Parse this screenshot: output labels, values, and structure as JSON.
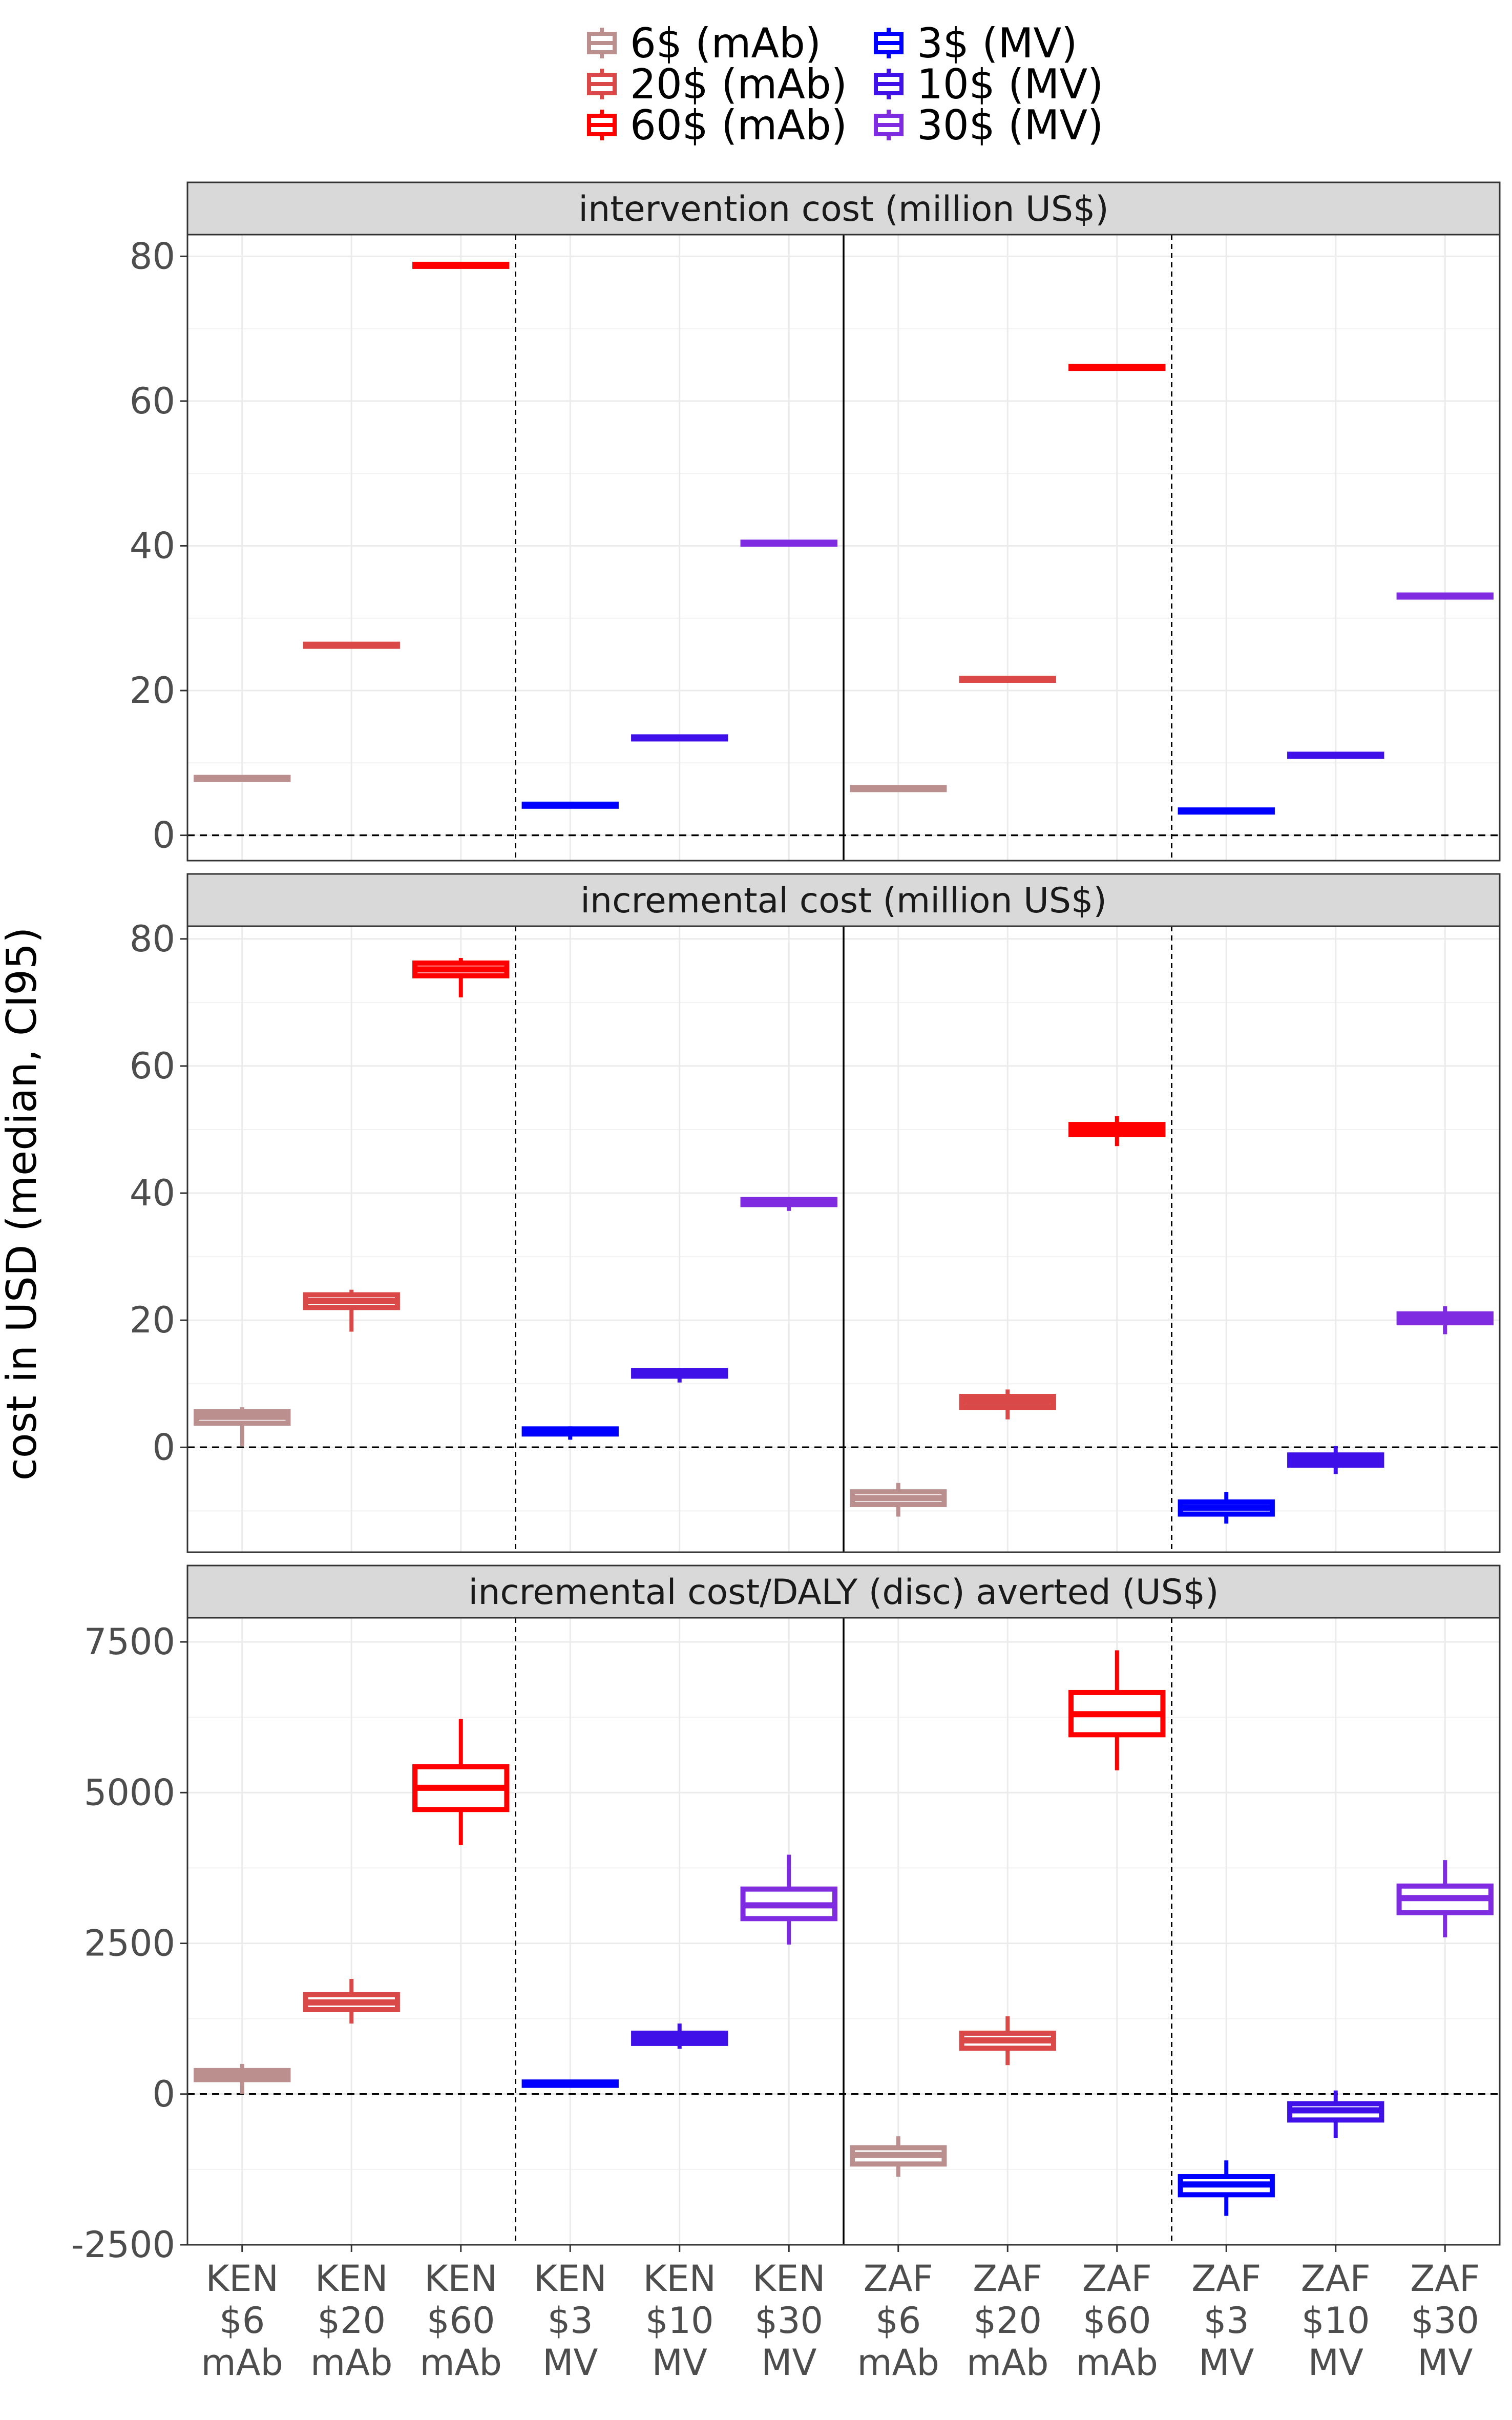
{
  "chart_data": {
    "type": "boxplot",
    "ylabel": "cost in USD (median, CI95)",
    "categories": [
      {
        "country": "KEN",
        "price": "$6",
        "product": "mAb",
        "series": 0
      },
      {
        "country": "KEN",
        "price": "$20",
        "product": "mAb",
        "series": 1
      },
      {
        "country": "KEN",
        "price": "$60",
        "product": "mAb",
        "series": 2
      },
      {
        "country": "KEN",
        "price": "$3",
        "product": "MV",
        "series": 3
      },
      {
        "country": "KEN",
        "price": "$10",
        "product": "MV",
        "series": 4
      },
      {
        "country": "KEN",
        "price": "$30",
        "product": "MV",
        "series": 5
      },
      {
        "country": "ZAF",
        "price": "$6",
        "product": "mAb",
        "series": 0
      },
      {
        "country": "ZAF",
        "price": "$20",
        "product": "mAb",
        "series": 1
      },
      {
        "country": "ZAF",
        "price": "$60",
        "product": "mAb",
        "series": 2
      },
      {
        "country": "ZAF",
        "price": "$3",
        "product": "MV",
        "series": 3
      },
      {
        "country": "ZAF",
        "price": "$10",
        "product": "MV",
        "series": 4
      },
      {
        "country": "ZAF",
        "price": "$30",
        "product": "MV",
        "series": 5
      }
    ],
    "series": [
      {
        "name": "6$ (mAb)",
        "color": "#bc8f8f"
      },
      {
        "name": "20$ (mAb)",
        "color": "#db4848"
      },
      {
        "name": "60$ (mAb)",
        "color": "#ff0000"
      },
      {
        "name": "3$ (MV)",
        "color": "#0000ff"
      },
      {
        "name": "10$ (MV)",
        "color": "#3f10e8"
      },
      {
        "name": "30$ (MV)",
        "color": "#7f2be2"
      }
    ],
    "legend_position": "top",
    "panels": [
      {
        "title": "intervention cost (million US$)",
        "ylim": [
          -3.5,
          83
        ],
        "yticks": [
          0,
          20,
          40,
          60,
          80
        ],
        "yticklabels": [
          "0",
          "20",
          "40",
          "60",
          "80"
        ],
        "boxes": [
          {
            "lo": 7.7,
            "q1": 7.8,
            "med": 7.9,
            "q3": 8.0,
            "hi": 8.1
          },
          {
            "lo": 26.1,
            "q1": 26.2,
            "med": 26.3,
            "q3": 26.4,
            "hi": 26.5
          },
          {
            "lo": 78.6,
            "q1": 78.7,
            "med": 78.8,
            "q3": 78.9,
            "hi": 79.0
          },
          {
            "lo": 4.0,
            "q1": 4.1,
            "med": 4.2,
            "q3": 4.3,
            "hi": 4.4
          },
          {
            "lo": 13.3,
            "q1": 13.4,
            "med": 13.5,
            "q3": 13.6,
            "hi": 13.7
          },
          {
            "lo": 40.2,
            "q1": 40.3,
            "med": 40.4,
            "q3": 40.5,
            "hi": 40.6
          },
          {
            "lo": 6.3,
            "q1": 6.4,
            "med": 6.5,
            "q3": 6.6,
            "hi": 6.7
          },
          {
            "lo": 21.4,
            "q1": 21.5,
            "med": 21.6,
            "q3": 21.7,
            "hi": 21.8
          },
          {
            "lo": 64.5,
            "q1": 64.6,
            "med": 64.7,
            "q3": 64.8,
            "hi": 64.9
          },
          {
            "lo": 3.2,
            "q1": 3.3,
            "med": 3.4,
            "q3": 3.5,
            "hi": 3.6
          },
          {
            "lo": 10.9,
            "q1": 11.0,
            "med": 11.1,
            "q3": 11.2,
            "hi": 11.3
          },
          {
            "lo": 32.9,
            "q1": 33.0,
            "med": 33.1,
            "q3": 33.2,
            "hi": 33.3
          }
        ]
      },
      {
        "title": "incremental cost (million US$)",
        "ylim": [
          -16.5,
          82
        ],
        "yticks": [
          0,
          20,
          40,
          60,
          80
        ],
        "yticklabels": [
          "0",
          "20",
          "40",
          "60",
          "80"
        ],
        "boxes": [
          {
            "lo": 0.2,
            "q1": 3.8,
            "med": 4.8,
            "q3": 5.6,
            "hi": 6.3
          },
          {
            "lo": 18.2,
            "q1": 22.0,
            "med": 23.0,
            "q3": 24.0,
            "hi": 24.8
          },
          {
            "lo": 70.8,
            "q1": 74.2,
            "med": 75.2,
            "q3": 76.2,
            "hi": 77.0
          },
          {
            "lo": 1.2,
            "q1": 2.1,
            "med": 2.5,
            "q3": 2.9,
            "hi": 3.3
          },
          {
            "lo": 10.2,
            "q1": 11.2,
            "med": 11.7,
            "q3": 12.1,
            "hi": 12.5
          },
          {
            "lo": 37.2,
            "q1": 38.2,
            "med": 38.6,
            "q3": 39.0,
            "hi": 39.4
          },
          {
            "lo": -10.9,
            "q1": -9.0,
            "med": -8.0,
            "q3": -7.0,
            "hi": -5.6
          },
          {
            "lo": 4.4,
            "q1": 6.3,
            "med": 7.2,
            "q3": 8.0,
            "hi": 9.1
          },
          {
            "lo": 47.4,
            "q1": 49.2,
            "med": 50.0,
            "q3": 50.8,
            "hi": 52.1
          },
          {
            "lo": -12.0,
            "q1": -10.5,
            "med": -9.5,
            "q3": -8.6,
            "hi": -7.0
          },
          {
            "lo": -4.2,
            "q1": -2.8,
            "med": -2.0,
            "q3": -1.2,
            "hi": 0.2
          },
          {
            "lo": 17.8,
            "q1": 19.6,
            "med": 20.3,
            "q3": 21.0,
            "hi": 22.2
          }
        ]
      },
      {
        "title": "incremental cost/DALY (disc) averted (US$)",
        "ylim": [
          -2500,
          7900
        ],
        "yticks": [
          -2500,
          0,
          2500,
          5000,
          7500
        ],
        "yticklabels": [
          "-2500",
          "0",
          "2500",
          "5000",
          "7500"
        ],
        "boxes": [
          {
            "lo": 0,
            "q1": 240,
            "med": 310,
            "q3": 390,
            "hi": 500
          },
          {
            "lo": 1170,
            "q1": 1400,
            "med": 1520,
            "q3": 1650,
            "hi": 1910
          },
          {
            "lo": 4130,
            "q1": 4720,
            "med": 5080,
            "q3": 5430,
            "hi": 6220
          },
          {
            "lo": 110,
            "q1": 145,
            "med": 170,
            "q3": 200,
            "hi": 235
          },
          {
            "lo": 750,
            "q1": 840,
            "med": 920,
            "q3": 1010,
            "hi": 1170
          },
          {
            "lo": 2480,
            "q1": 2910,
            "med": 3130,
            "q3": 3400,
            "hi": 3970
          },
          {
            "lo": -1370,
            "q1": -1160,
            "med": -1010,
            "q3": -890,
            "hi": -700
          },
          {
            "lo": 480,
            "q1": 760,
            "med": 890,
            "q3": 1010,
            "hi": 1290
          },
          {
            "lo": 5370,
            "q1": 5960,
            "med": 6300,
            "q3": 6660,
            "hi": 7360
          },
          {
            "lo": -2020,
            "q1": -1670,
            "med": -1500,
            "q3": -1370,
            "hi": -1100
          },
          {
            "lo": -730,
            "q1": -430,
            "med": -270,
            "q3": -160,
            "hi": 60
          },
          {
            "lo": 2600,
            "q1": 3010,
            "med": 3250,
            "q3": 3450,
            "hi": 3880
          }
        ]
      }
    ]
  }
}
